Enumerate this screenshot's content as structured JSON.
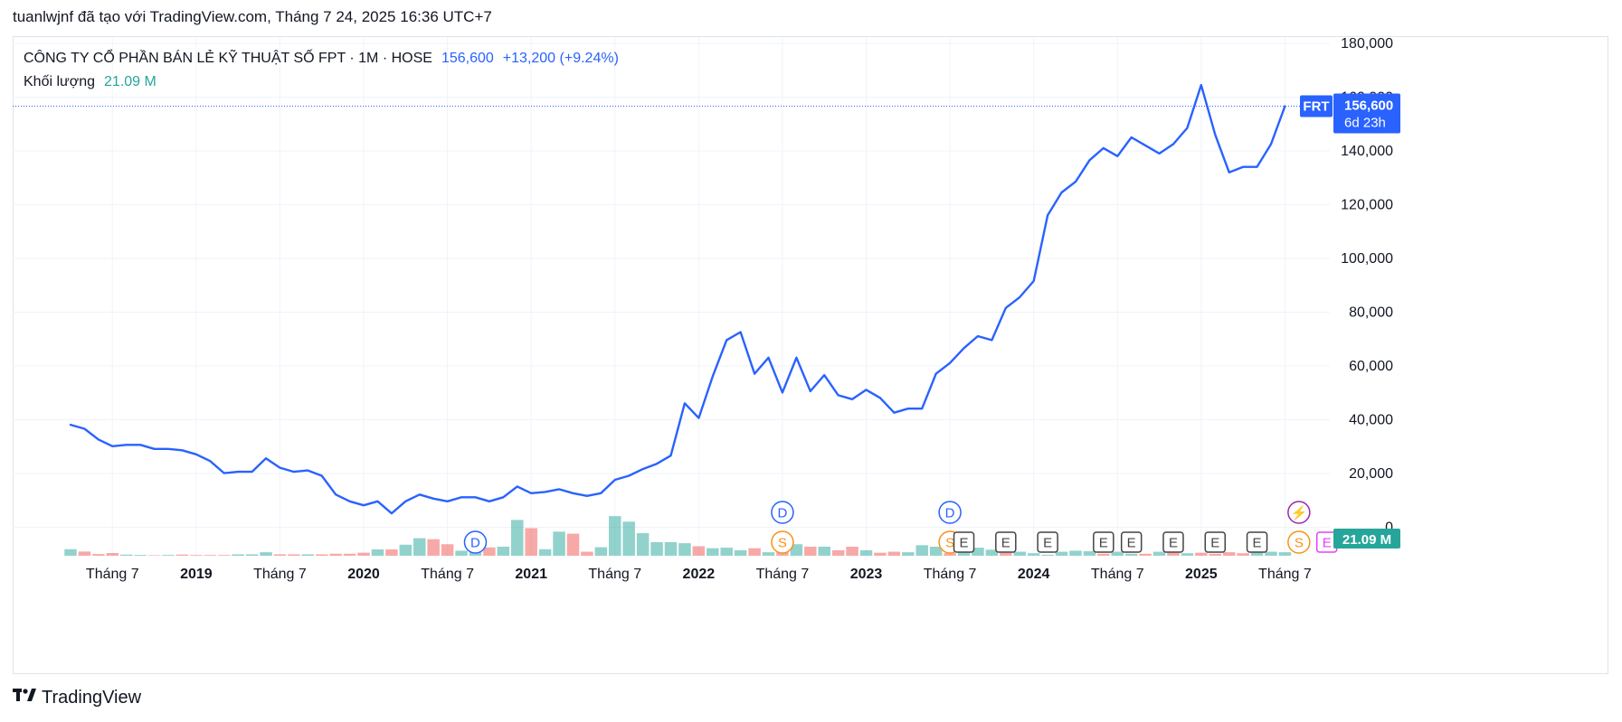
{
  "caption": "tuanlwjnf đã tạo với TradingView.com, Tháng 7 24, 2025 16:36 UTC+7",
  "legend": {
    "symbol": "CÔNG TY CỔ PHẦN BÁN LẺ KỸ THUẬT SỐ FPT · 1M · HOSE",
    "price": "156,600",
    "change": "+13,200 (+9.24%)",
    "volume_label": "Khối lượng",
    "volume_value": "21.09 M"
  },
  "price_tag": {
    "ticker": "FRT",
    "price": "156,600",
    "countdown": "6d 23h"
  },
  "volume_tag": "21.09 M",
  "brand": "TradingView",
  "colors": {
    "line": "#2962ff",
    "vol_up": "#26a69a",
    "vol_down": "#ef5350",
    "tag_bg": "#2962ff",
    "vol_tag_bg": "#26a69a"
  },
  "chart_data": {
    "type": "line",
    "series": [
      {
        "values": [
          38000,
          36500,
          32500,
          30000,
          30500,
          30500,
          29000,
          29000,
          28500,
          27000,
          24500,
          20000,
          20500,
          20500,
          25500,
          22000,
          20500,
          21000,
          19000,
          12000,
          9500,
          8000,
          9500,
          5000,
          9500,
          12000,
          10500,
          9500,
          11000,
          11000,
          9500,
          11000,
          15000,
          12500,
          13000,
          14000,
          12500,
          11500,
          12500,
          17500,
          19000,
          21500,
          23500,
          26500,
          46000,
          40500,
          56000,
          69500,
          72500,
          57000,
          63000,
          50000,
          63000,
          50500,
          56500,
          49000,
          47500,
          51000,
          48000,
          42500,
          44000,
          44000,
          57000,
          61000,
          66500,
          71000,
          69500,
          81500,
          85500,
          91500,
          116000,
          124500,
          128500,
          136500,
          141000,
          138000,
          145000,
          142000,
          139000,
          142500,
          148500,
          164500,
          146000,
          132000,
          134000,
          134000,
          142500,
          156600
        ]
      }
    ],
    "volume": [
      {
        "v": 6.5,
        "up": true
      },
      {
        "v": 4.2,
        "up": false
      },
      {
        "v": 1.7,
        "up": false
      },
      {
        "v": 2.7,
        "up": false
      },
      {
        "v": 1.1,
        "up": true
      },
      {
        "v": 0.8,
        "up": true
      },
      {
        "v": 0.5,
        "up": false
      },
      {
        "v": 0.8,
        "up": true
      },
      {
        "v": 1.2,
        "up": false
      },
      {
        "v": 0.7,
        "up": false
      },
      {
        "v": 0.7,
        "up": false
      },
      {
        "v": 0.7,
        "up": false
      },
      {
        "v": 1.4,
        "up": true
      },
      {
        "v": 1.4,
        "up": true
      },
      {
        "v": 3.5,
        "up": true
      },
      {
        "v": 1.4,
        "up": false
      },
      {
        "v": 1.4,
        "up": false
      },
      {
        "v": 1.4,
        "up": true
      },
      {
        "v": 1.4,
        "up": false
      },
      {
        "v": 2.0,
        "up": false
      },
      {
        "v": 2.0,
        "up": false
      },
      {
        "v": 3.0,
        "up": false
      },
      {
        "v": 6.3,
        "up": true
      },
      {
        "v": 6.3,
        "up": false
      },
      {
        "v": 11.0,
        "up": true
      },
      {
        "v": 17.5,
        "up": true
      },
      {
        "v": 16.5,
        "up": false
      },
      {
        "v": 11.5,
        "up": false
      },
      {
        "v": 5.0,
        "up": true
      },
      {
        "v": 11.5,
        "up": true
      },
      {
        "v": 8.3,
        "up": false
      },
      {
        "v": 9.0,
        "up": true
      },
      {
        "v": 35.7,
        "up": true
      },
      {
        "v": 27.5,
        "up": false
      },
      {
        "v": 6.5,
        "up": true
      },
      {
        "v": 24.0,
        "up": true
      },
      {
        "v": 22.0,
        "up": false
      },
      {
        "v": 4.0,
        "up": false
      },
      {
        "v": 8.5,
        "up": true
      },
      {
        "v": 39.5,
        "up": true
      },
      {
        "v": 34.0,
        "up": true
      },
      {
        "v": 22.5,
        "up": true
      },
      {
        "v": 13.5,
        "up": true
      },
      {
        "v": 13.5,
        "up": true
      },
      {
        "v": 12.5,
        "up": true
      },
      {
        "v": 9.5,
        "up": false
      },
      {
        "v": 7.5,
        "up": true
      },
      {
        "v": 8.0,
        "up": true
      },
      {
        "v": 5.5,
        "up": true
      },
      {
        "v": 7.5,
        "up": false
      },
      {
        "v": 3.5,
        "up": true
      },
      {
        "v": 4.0,
        "up": false
      },
      {
        "v": 11.5,
        "up": true
      },
      {
        "v": 9.0,
        "up": false
      },
      {
        "v": 9.0,
        "up": true
      },
      {
        "v": 5.5,
        "up": false
      },
      {
        "v": 9.0,
        "up": false
      },
      {
        "v": 5.5,
        "up": true
      },
      {
        "v": 3.0,
        "up": false
      },
      {
        "v": 4.0,
        "up": false
      },
      {
        "v": 3.5,
        "up": true
      },
      {
        "v": 10.5,
        "up": true
      },
      {
        "v": 9.0,
        "up": true
      },
      {
        "v": 2.5,
        "up": false
      },
      {
        "v": 4.0,
        "up": true
      },
      {
        "v": 8.0,
        "up": true
      },
      {
        "v": 6.0,
        "up": true
      },
      {
        "v": 3.0,
        "up": false
      },
      {
        "v": 4.0,
        "up": true
      },
      {
        "v": 2.5,
        "up": true
      },
      {
        "v": 1.0,
        "up": true
      },
      {
        "v": 4.0,
        "up": true
      },
      {
        "v": 5.0,
        "up": true
      },
      {
        "v": 4.5,
        "up": true
      },
      {
        "v": 2.0,
        "up": false
      },
      {
        "v": 4.0,
        "up": true
      },
      {
        "v": 2.0,
        "up": true
      },
      {
        "v": 2.0,
        "up": false
      },
      {
        "v": 4.0,
        "up": true
      },
      {
        "v": 3.0,
        "up": false
      },
      {
        "v": 2.5,
        "up": true
      },
      {
        "v": 3.0,
        "up": false
      },
      {
        "v": 2.0,
        "up": false
      },
      {
        "v": 3.5,
        "up": false
      },
      {
        "v": 2.5,
        "up": false
      },
      {
        "v": 3.0,
        "up": true
      },
      {
        "v": 4.0,
        "up": true
      },
      {
        "v": 3.5,
        "up": true
      }
    ],
    "ylim": [
      0,
      180000
    ],
    "yticks": [
      "180,000",
      "160,000",
      "140,000",
      "120,000",
      "100,000",
      "80,000",
      "60,000",
      "40,000",
      "20,000",
      "0"
    ],
    "xticks": [
      "Tháng 7",
      "2019",
      "Tháng 7",
      "2020",
      "Tháng 7",
      "2021",
      "Tháng 7",
      "2022",
      "Tháng 7",
      "2023",
      "Tháng 7",
      "2024",
      "Tháng 7",
      "2025",
      "Tháng 7"
    ],
    "markers": [
      {
        "i": 29,
        "label": "D",
        "color": "#2962ff",
        "row": "low"
      },
      {
        "i": 51,
        "label": "D",
        "color": "#2962ff",
        "row": "high"
      },
      {
        "i": 51,
        "label": "S",
        "color": "#f7931a",
        "row": "low"
      },
      {
        "i": 63,
        "label": "D",
        "color": "#2962ff",
        "row": "high"
      },
      {
        "i": 63,
        "label": "S",
        "color": "#f7931a",
        "row": "low"
      },
      {
        "i": 64,
        "label": "E",
        "color": "#444444",
        "row": "low"
      },
      {
        "i": 67,
        "label": "E",
        "color": "#444444",
        "row": "low"
      },
      {
        "i": 70,
        "label": "E",
        "color": "#444444",
        "row": "low"
      },
      {
        "i": 74,
        "label": "E",
        "color": "#444444",
        "row": "low"
      },
      {
        "i": 76,
        "label": "E",
        "color": "#444444",
        "row": "low"
      },
      {
        "i": 79,
        "label": "E",
        "color": "#444444",
        "row": "low"
      },
      {
        "i": 82,
        "label": "E",
        "color": "#444444",
        "row": "low"
      },
      {
        "i": 85,
        "label": "E",
        "color": "#444444",
        "row": "low"
      },
      {
        "i": 88,
        "label": "⚡",
        "color": "#9c27b0",
        "row": "high"
      },
      {
        "i": 88,
        "label": "S",
        "color": "#f7931a",
        "row": "low"
      },
      {
        "i": 90,
        "label": "E",
        "color": "#e040fb",
        "row": "low"
      }
    ]
  }
}
